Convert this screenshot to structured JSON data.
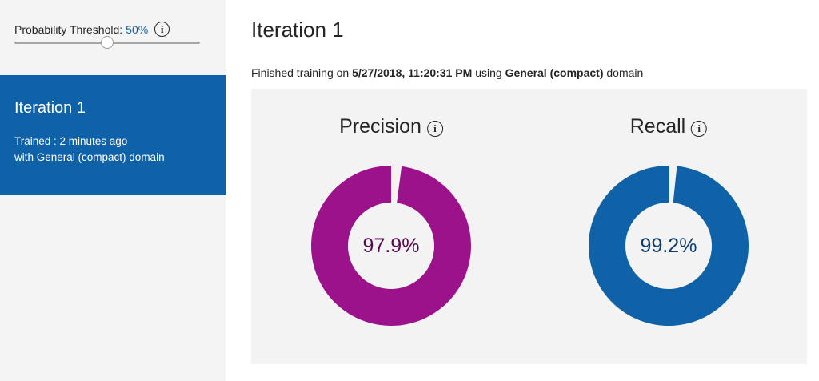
{
  "sidebar": {
    "threshold": {
      "label": "Probability Threshold:",
      "value_text": "50%",
      "value": 0.5,
      "info_icon": "info-icon",
      "accent": "#0f62a8"
    },
    "iteration_card": {
      "title": "Iteration 1",
      "trained": "Trained : 2 minutes ago",
      "domain": "with General (compact) domain",
      "background": "#0f62a8"
    }
  },
  "main": {
    "title": "Iteration 1",
    "status": {
      "prefix": "Finished training on ",
      "datetime": "5/27/2018, 11:20:31 PM",
      "middle": " using ",
      "domain": "General (compact)",
      "suffix": " domain"
    },
    "metrics": [
      {
        "label": "Precision",
        "value_text": "97.9%",
        "value": 0.979,
        "info_icon": "info-icon",
        "ring_color": "#9b128a",
        "text_color": "#5a0a50"
      },
      {
        "label": "Recall",
        "value_text": "99.2%",
        "value": 0.992,
        "info_icon": "info-icon",
        "ring_color": "#0f62a8",
        "text_color": "#0b3f73"
      }
    ]
  }
}
